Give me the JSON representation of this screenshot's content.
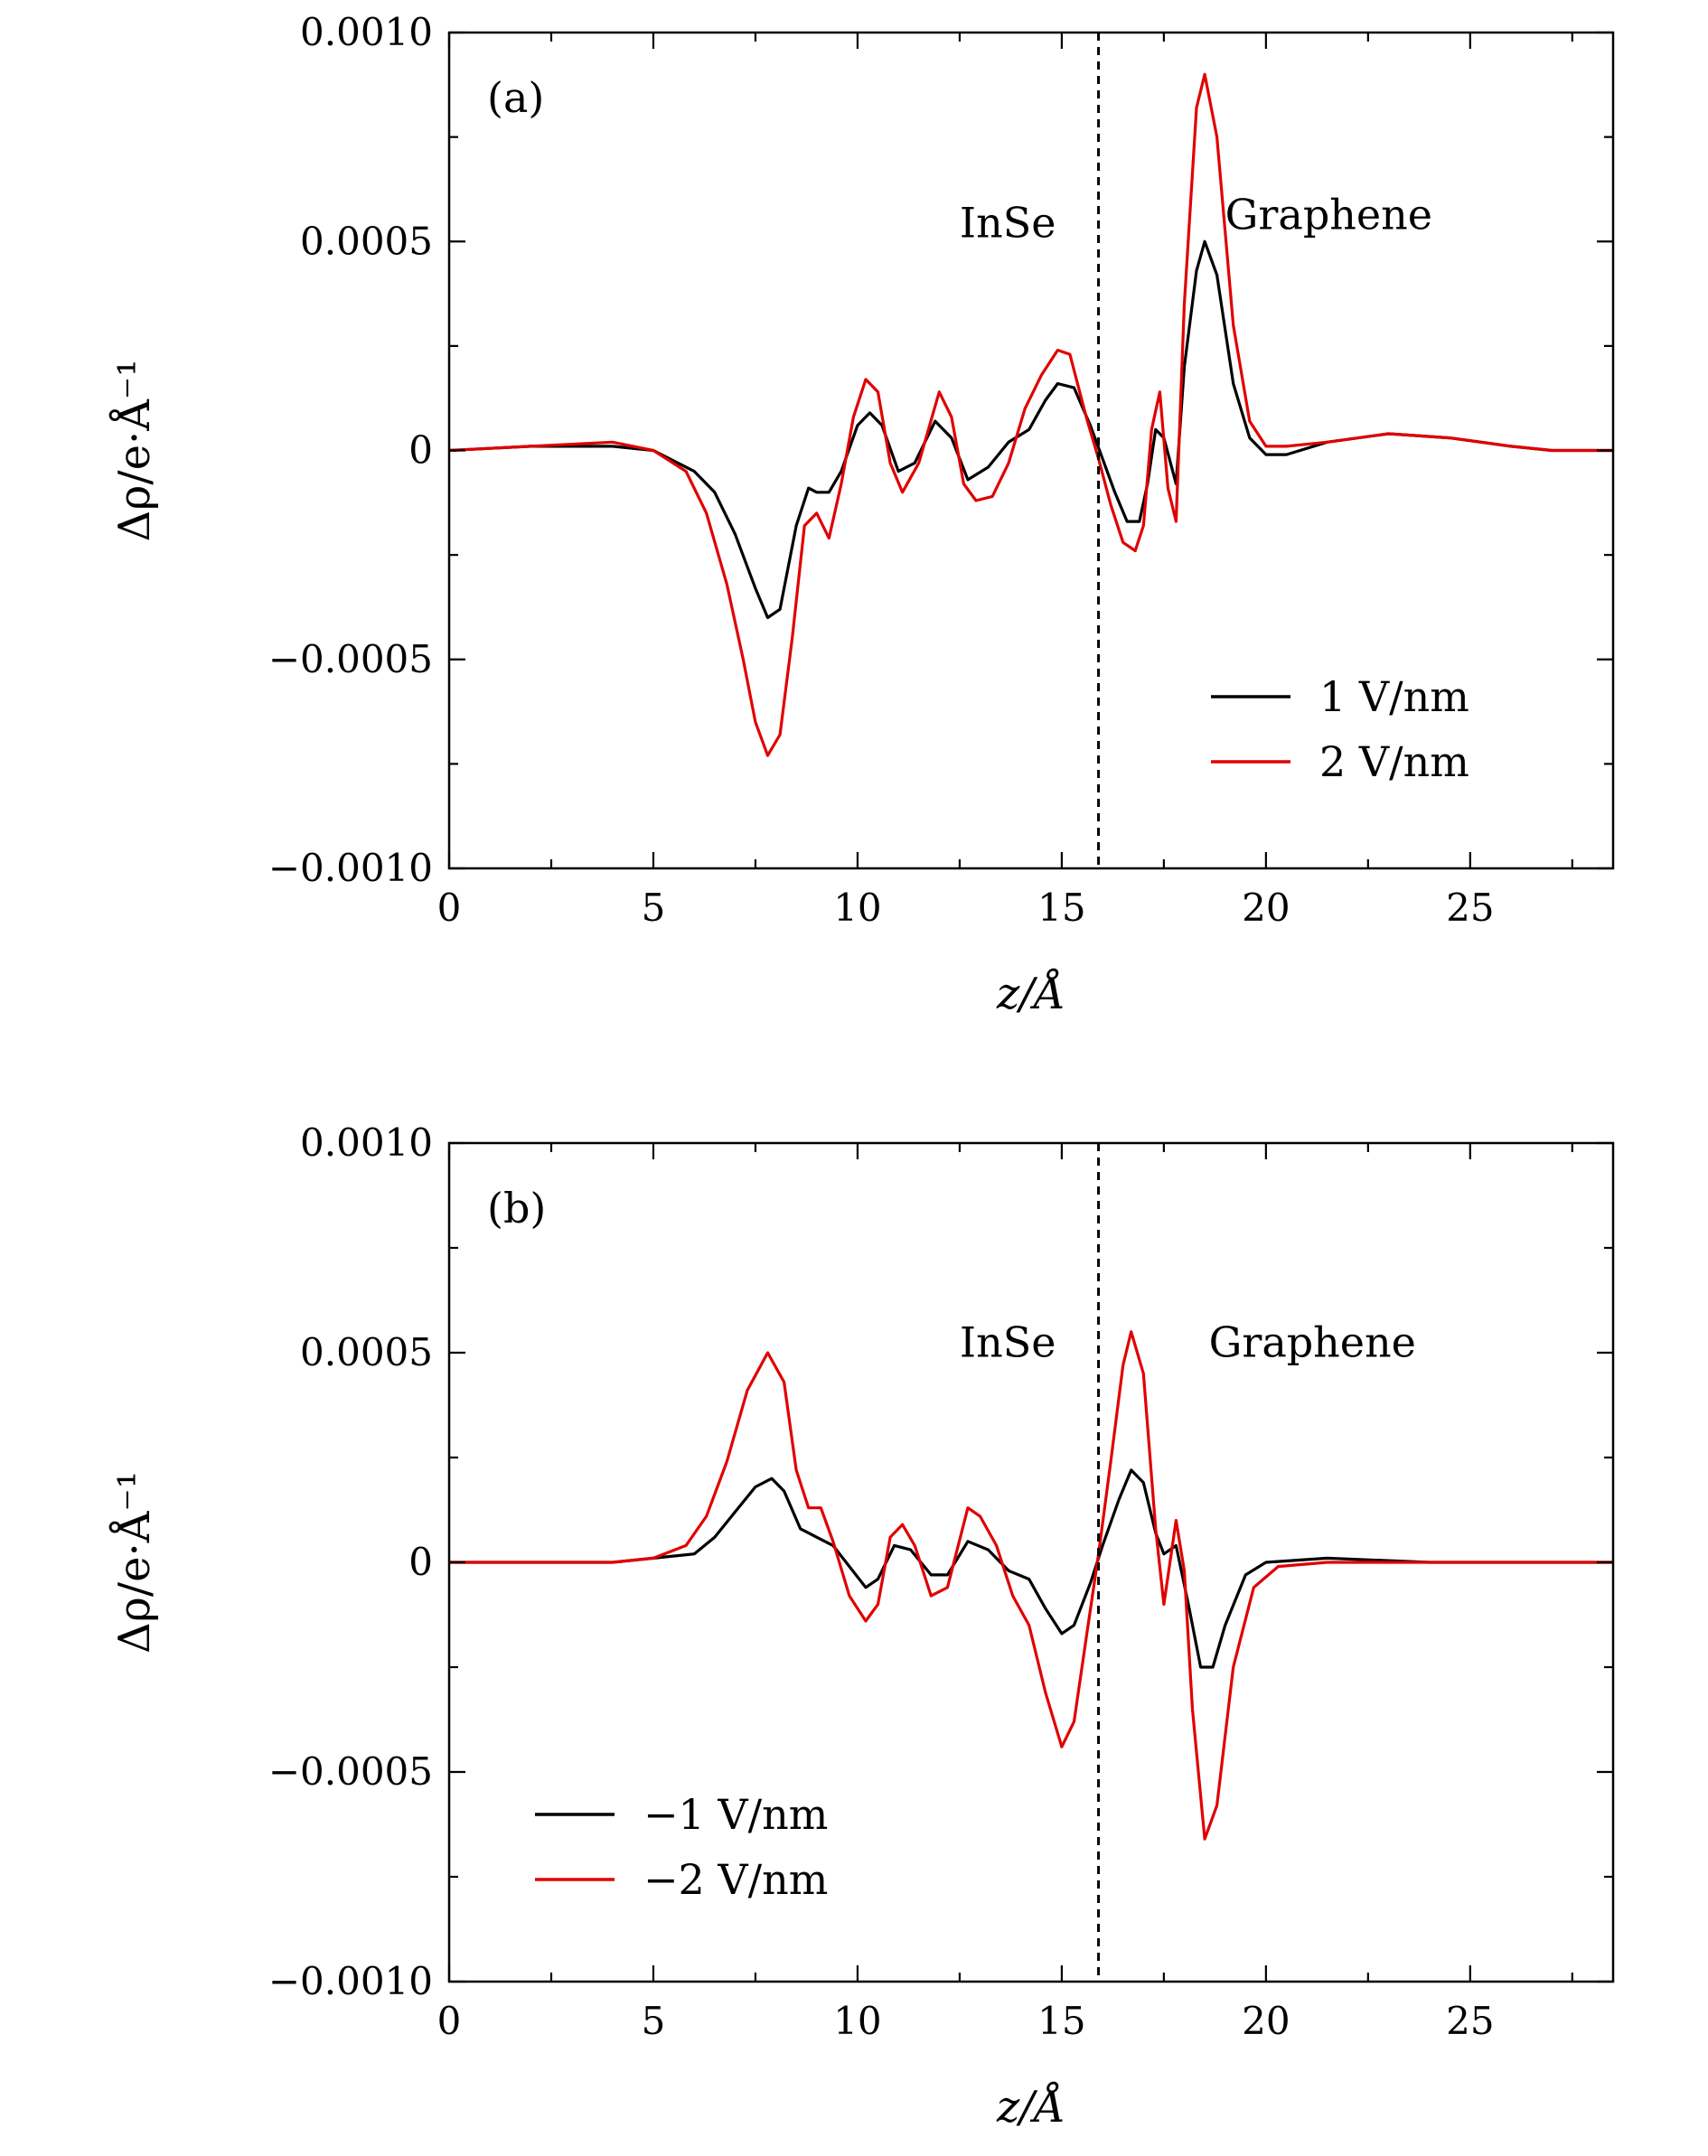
{
  "chart_data": [
    {
      "type": "line",
      "panel_label": "(a)",
      "xlabel": "z/Å",
      "ylabel": "Δρ/e·Å⁻¹",
      "xlim": [
        0,
        28.5
      ],
      "ylim": [
        -0.001,
        0.001
      ],
      "xticks": [
        0,
        5,
        10,
        15,
        20,
        25
      ],
      "xtick_labels": [
        "0",
        "5",
        "10",
        "15",
        "20",
        "25"
      ],
      "yticks": [
        -0.001,
        -0.0005,
        0,
        0.0005,
        0.001
      ],
      "ytick_labels": [
        "−0.0010",
        "−0.0005",
        "0",
        "0.0005",
        "0.0010"
      ],
      "interface_z": 15.9,
      "region_labels": [
        {
          "text": "InSe",
          "x": 12.5,
          "y": 0.00051
        },
        {
          "text": "Graphene",
          "x": 19.0,
          "y": 0.00053
        }
      ],
      "legend_position": "lower-right",
      "series": [
        {
          "name": "1 V/nm",
          "color": "#000000",
          "points": [
            [
              0,
              0
            ],
            [
              2,
              1e-05
            ],
            [
              4,
              1e-05
            ],
            [
              5,
              0
            ],
            [
              6,
              -5e-05
            ],
            [
              6.5,
              -0.0001
            ],
            [
              7,
              -0.0002
            ],
            [
              7.5,
              -0.00033
            ],
            [
              7.8,
              -0.0004
            ],
            [
              8.1,
              -0.00038
            ],
            [
              8.5,
              -0.00018
            ],
            [
              8.8,
              -9e-05
            ],
            [
              9.0,
              -0.0001
            ],
            [
              9.3,
              -0.0001
            ],
            [
              9.6,
              -5e-05
            ],
            [
              10.0,
              6e-05
            ],
            [
              10.3,
              9e-05
            ],
            [
              10.6,
              6e-05
            ],
            [
              11.0,
              -5e-05
            ],
            [
              11.4,
              -3e-05
            ],
            [
              11.9,
              7e-05
            ],
            [
              12.3,
              3e-05
            ],
            [
              12.7,
              -7e-05
            ],
            [
              13.2,
              -4e-05
            ],
            [
              13.7,
              2e-05
            ],
            [
              14.2,
              5e-05
            ],
            [
              14.6,
              0.00012
            ],
            [
              14.9,
              0.00016
            ],
            [
              15.3,
              0.00015
            ],
            [
              15.7,
              6e-05
            ],
            [
              16.0,
              -2e-05
            ],
            [
              16.3,
              -0.0001
            ],
            [
              16.6,
              -0.00017
            ],
            [
              16.9,
              -0.00017
            ],
            [
              17.1,
              -8e-05
            ],
            [
              17.3,
              5e-05
            ],
            [
              17.5,
              3e-05
            ],
            [
              17.8,
              -8e-05
            ],
            [
              18.0,
              0.0002
            ],
            [
              18.3,
              0.00043
            ],
            [
              18.5,
              0.0005
            ],
            [
              18.8,
              0.00042
            ],
            [
              19.2,
              0.00016
            ],
            [
              19.6,
              3e-05
            ],
            [
              20.0,
              -1e-05
            ],
            [
              20.5,
              -1e-05
            ],
            [
              21.5,
              2e-05
            ],
            [
              23.0,
              4e-05
            ],
            [
              24.5,
              3e-05
            ],
            [
              26,
              1e-05
            ],
            [
              27,
              0
            ],
            [
              28.5,
              0
            ]
          ]
        },
        {
          "name": "2 V/nm",
          "color": "#e00000",
          "points": [
            [
              0,
              0
            ],
            [
              2,
              1e-05
            ],
            [
              4,
              2e-05
            ],
            [
              5,
              0
            ],
            [
              5.8,
              -5e-05
            ],
            [
              6.3,
              -0.00015
            ],
            [
              6.8,
              -0.00032
            ],
            [
              7.2,
              -0.0005
            ],
            [
              7.5,
              -0.00065
            ],
            [
              7.8,
              -0.00073
            ],
            [
              8.1,
              -0.00068
            ],
            [
              8.4,
              -0.00045
            ],
            [
              8.7,
              -0.00018
            ],
            [
              9.0,
              -0.00015
            ],
            [
              9.3,
              -0.00021
            ],
            [
              9.6,
              -8e-05
            ],
            [
              9.9,
              8e-05
            ],
            [
              10.2,
              0.00017
            ],
            [
              10.5,
              0.00014
            ],
            [
              10.8,
              -3e-05
            ],
            [
              11.1,
              -0.0001
            ],
            [
              11.5,
              -3e-05
            ],
            [
              12.0,
              0.00014
            ],
            [
              12.3,
              8e-05
            ],
            [
              12.6,
              -8e-05
            ],
            [
              12.9,
              -0.00012
            ],
            [
              13.3,
              -0.00011
            ],
            [
              13.7,
              -3e-05
            ],
            [
              14.1,
              0.0001
            ],
            [
              14.5,
              0.00018
            ],
            [
              14.9,
              0.00024
            ],
            [
              15.2,
              0.00023
            ],
            [
              15.6,
              8e-05
            ],
            [
              15.9,
              -2e-05
            ],
            [
              16.2,
              -0.00013
            ],
            [
              16.5,
              -0.00022
            ],
            [
              16.8,
              -0.00024
            ],
            [
              17.0,
              -0.00018
            ],
            [
              17.2,
              5e-05
            ],
            [
              17.4,
              0.00014
            ],
            [
              17.6,
              -9e-05
            ],
            [
              17.8,
              -0.00017
            ],
            [
              18.0,
              0.00035
            ],
            [
              18.3,
              0.00082
            ],
            [
              18.5,
              0.0009
            ],
            [
              18.8,
              0.00075
            ],
            [
              19.2,
              0.0003
            ],
            [
              19.6,
              7e-05
            ],
            [
              20.0,
              1e-05
            ],
            [
              20.5,
              1e-05
            ],
            [
              21.5,
              2e-05
            ],
            [
              23.0,
              4e-05
            ],
            [
              24.5,
              3e-05
            ],
            [
              26,
              1e-05
            ],
            [
              27,
              0
            ],
            [
              28.5,
              0
            ]
          ]
        }
      ]
    },
    {
      "type": "line",
      "panel_label": "(b)",
      "xlabel": "z/Å",
      "ylabel": "Δρ/e·Å⁻¹",
      "xlim": [
        0,
        28.5
      ],
      "ylim": [
        -0.001,
        0.001
      ],
      "xticks": [
        0,
        5,
        10,
        15,
        20,
        25
      ],
      "xtick_labels": [
        "0",
        "5",
        "10",
        "15",
        "20",
        "25"
      ],
      "yticks": [
        -0.001,
        -0.0005,
        0,
        0.0005,
        0.001
      ],
      "ytick_labels": [
        "−0.0010",
        "−0.0005",
        "0",
        "0.0005",
        "0.0010"
      ],
      "interface_z": 15.9,
      "region_labels": [
        {
          "text": "InSe",
          "x": 12.5,
          "y": 0.00049
        },
        {
          "text": "Graphene",
          "x": 18.6,
          "y": 0.00049
        }
      ],
      "legend_position": "lower-left",
      "series": [
        {
          "name": "−1 V/nm",
          "color": "#000000",
          "points": [
            [
              0,
              0
            ],
            [
              4,
              0
            ],
            [
              5,
              1e-05
            ],
            [
              6,
              2e-05
            ],
            [
              6.5,
              6e-05
            ],
            [
              7,
              0.00012
            ],
            [
              7.5,
              0.00018
            ],
            [
              7.9,
              0.0002
            ],
            [
              8.2,
              0.00017
            ],
            [
              8.6,
              8e-05
            ],
            [
              9.0,
              6e-05
            ],
            [
              9.4,
              4e-05
            ],
            [
              9.8,
              -1e-05
            ],
            [
              10.2,
              -6e-05
            ],
            [
              10.5,
              -4e-05
            ],
            [
              10.9,
              4e-05
            ],
            [
              11.3,
              3e-05
            ],
            [
              11.8,
              -3e-05
            ],
            [
              12.2,
              -3e-05
            ],
            [
              12.7,
              5e-05
            ],
            [
              13.2,
              3e-05
            ],
            [
              13.7,
              -2e-05
            ],
            [
              14.2,
              -4e-05
            ],
            [
              14.6,
              -0.00011
            ],
            [
              15.0,
              -0.00017
            ],
            [
              15.3,
              -0.00015
            ],
            [
              15.7,
              -5e-05
            ],
            [
              16.0,
              4e-05
            ],
            [
              16.4,
              0.00015
            ],
            [
              16.7,
              0.00022
            ],
            [
              17.0,
              0.00019
            ],
            [
              17.3,
              7e-05
            ],
            [
              17.5,
              2e-05
            ],
            [
              17.8,
              4e-05
            ],
            [
              18.1,
              -0.0001
            ],
            [
              18.4,
              -0.00025
            ],
            [
              18.7,
              -0.00025
            ],
            [
              19.0,
              -0.00015
            ],
            [
              19.5,
              -3e-05
            ],
            [
              20.0,
              0
            ],
            [
              21.5,
              1e-05
            ],
            [
              24,
              0
            ],
            [
              28.5,
              0
            ]
          ]
        },
        {
          "name": "−2 V/nm",
          "color": "#e00000",
          "points": [
            [
              0,
              0
            ],
            [
              4,
              0
            ],
            [
              5,
              1e-05
            ],
            [
              5.8,
              4e-05
            ],
            [
              6.3,
              0.00011
            ],
            [
              6.8,
              0.00024
            ],
            [
              7.3,
              0.00041
            ],
            [
              7.8,
              0.0005
            ],
            [
              8.2,
              0.00043
            ],
            [
              8.5,
              0.00022
            ],
            [
              8.8,
              0.00013
            ],
            [
              9.1,
              0.00013
            ],
            [
              9.4,
              5e-05
            ],
            [
              9.8,
              -8e-05
            ],
            [
              10.2,
              -0.00014
            ],
            [
              10.5,
              -0.0001
            ],
            [
              10.8,
              6e-05
            ],
            [
              11.1,
              9e-05
            ],
            [
              11.4,
              4e-05
            ],
            [
              11.8,
              -8e-05
            ],
            [
              12.2,
              -6e-05
            ],
            [
              12.7,
              0.00013
            ],
            [
              13.0,
              0.00011
            ],
            [
              13.4,
              4e-05
            ],
            [
              13.8,
              -8e-05
            ],
            [
              14.2,
              -0.00015
            ],
            [
              14.6,
              -0.00031
            ],
            [
              15.0,
              -0.00044
            ],
            [
              15.3,
              -0.00038
            ],
            [
              15.6,
              -0.00018
            ],
            [
              15.9,
              2e-05
            ],
            [
              16.2,
              0.00024
            ],
            [
              16.5,
              0.00047
            ],
            [
              16.7,
              0.00055
            ],
            [
              17.0,
              0.00045
            ],
            [
              17.3,
              8e-05
            ],
            [
              17.5,
              -0.0001
            ],
            [
              17.8,
              0.0001
            ],
            [
              18.0,
              -2e-05
            ],
            [
              18.2,
              -0.00035
            ],
            [
              18.5,
              -0.00066
            ],
            [
              18.8,
              -0.00058
            ],
            [
              19.2,
              -0.00025
            ],
            [
              19.7,
              -6e-05
            ],
            [
              20.3,
              -1e-05
            ],
            [
              21.5,
              0
            ],
            [
              24,
              0
            ],
            [
              28.5,
              0
            ]
          ]
        }
      ]
    }
  ]
}
